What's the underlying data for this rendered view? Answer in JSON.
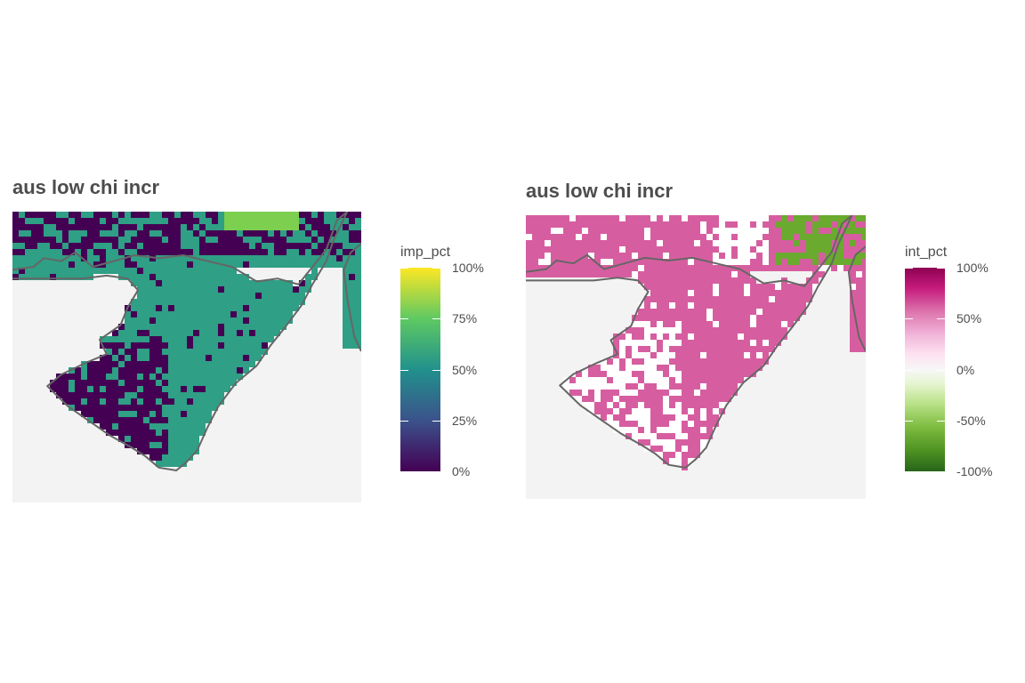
{
  "panels": [
    {
      "title": "aus low chi incr",
      "legend": {
        "title": "imp_pct",
        "ticks": [
          "100%",
          "75%",
          "50%",
          "25%",
          "0%"
        ],
        "scale": "viridis",
        "colors": [
          "#440154",
          "#3b528b",
          "#21918c",
          "#5ec962",
          "#fde725"
        ]
      }
    },
    {
      "title": "aus low chi incr",
      "legend": {
        "title": "int_pct",
        "ticks": [
          "100%",
          "50%",
          "0%",
          "-50%",
          "-100%"
        ],
        "scale": "PiYG diverging",
        "colors": [
          "#276419",
          "#7fbc41",
          "#f7f7f7",
          "#de77ae",
          "#8e0152"
        ]
      }
    }
  ],
  "colors": {
    "background": "#f3f3f3",
    "coastline": "#666666",
    "imp_dominant": "#2f9f85",
    "imp_low": "#440154",
    "int_dominant": "#d65ea0",
    "int_negative": "#6aaa2e",
    "int_neutral": "#ffffff"
  }
}
